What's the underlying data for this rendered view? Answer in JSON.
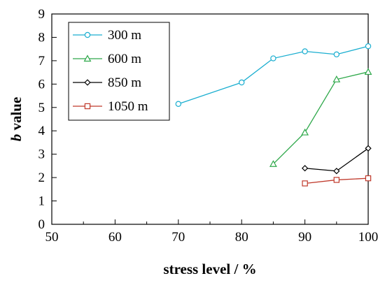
{
  "chart_data": {
    "type": "line",
    "xlabel": "stress level / %",
    "ylabel_bold": "b",
    "ylabel_rest": " value",
    "xlim": [
      50,
      100
    ],
    "ylim": [
      0,
      9
    ],
    "xticks": [
      "50",
      "60",
      "70",
      "80",
      "90",
      "100"
    ],
    "yticks": [
      "0",
      "1",
      "2",
      "3",
      "4",
      "5",
      "6",
      "7",
      "8",
      "9"
    ],
    "grid": false,
    "legend_position": "top-left",
    "series": [
      {
        "name": "300 m",
        "marker": "circle",
        "color": "#1aaed0",
        "x": [
          70,
          80,
          85,
          90,
          95,
          100
        ],
        "y": [
          5.15,
          6.07,
          7.1,
          7.4,
          7.27,
          7.62
        ]
      },
      {
        "name": "600 m",
        "marker": "triangle",
        "color": "#2ea84a",
        "x": [
          85,
          90,
          95,
          100
        ],
        "y": [
          2.58,
          3.93,
          6.2,
          6.52
        ]
      },
      {
        "name": "850 m",
        "marker": "diamond",
        "color": "#000000",
        "x": [
          90,
          95,
          100
        ],
        "y": [
          2.4,
          2.28,
          3.25
        ]
      },
      {
        "name": "1050 m",
        "marker": "square",
        "color": "#c0392b",
        "x": [
          90,
          95,
          100
        ],
        "y": [
          1.75,
          1.9,
          1.97
        ]
      }
    ]
  }
}
